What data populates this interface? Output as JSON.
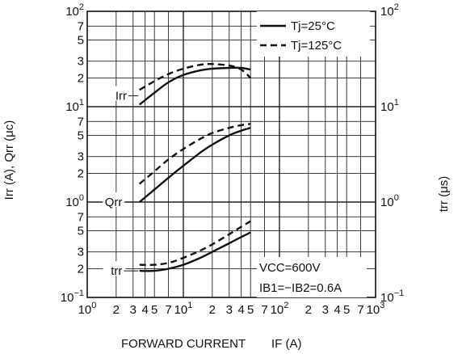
{
  "chart_data": {
    "type": "line",
    "x_scale": "log",
    "y_scale": "log",
    "xlim": [
      1,
      1000
    ],
    "ylim": [
      0.1,
      100
    ],
    "grid": true,
    "x_ticks": [
      {
        "base": "10",
        "exp": "0",
        "v": 1
      },
      {
        "label": "2",
        "v": 2
      },
      {
        "label": "3",
        "v": 3
      },
      {
        "label": "4",
        "v": 4
      },
      {
        "label": "5",
        "v": 5
      },
      {
        "label": "7",
        "v": 7
      },
      {
        "base": "10",
        "exp": "1",
        "v": 10
      },
      {
        "label": "2",
        "v": 20
      },
      {
        "label": "3",
        "v": 30
      },
      {
        "label": "4",
        "v": 40
      },
      {
        "label": "5",
        "v": 50
      },
      {
        "label": "7",
        "v": 70
      },
      {
        "base": "10",
        "exp": "2",
        "v": 100
      },
      {
        "label": "2",
        "v": 200
      },
      {
        "label": "3",
        "v": 300
      },
      {
        "label": "4",
        "v": 400
      },
      {
        "label": "5",
        "v": 500
      },
      {
        "label": "7",
        "v": 700
      },
      {
        "base": "10",
        "exp": "3",
        "v": 1000
      }
    ],
    "y_left_ticks": [
      {
        "base": "10",
        "exp": "−1",
        "v": 0.1
      },
      {
        "label": "2",
        "v": 0.2
      },
      {
        "label": "3",
        "v": 0.3
      },
      {
        "label": "5",
        "v": 0.5
      },
      {
        "label": "7",
        "v": 0.7
      },
      {
        "base": "10",
        "exp": "0",
        "v": 1
      },
      {
        "label": "2",
        "v": 2
      },
      {
        "label": "3",
        "v": 3
      },
      {
        "label": "5",
        "v": 5
      },
      {
        "label": "7",
        "v": 7
      },
      {
        "base": "10",
        "exp": "1",
        "v": 10
      },
      {
        "label": "2",
        "v": 20
      },
      {
        "label": "3",
        "v": 30
      },
      {
        "label": "5",
        "v": 50
      },
      {
        "label": "7",
        "v": 70
      },
      {
        "base": "10",
        "exp": "2",
        "v": 100
      }
    ],
    "y_right_ticks": [
      {
        "base": "10",
        "exp": "2",
        "v": 100
      },
      {
        "base": "10",
        "exp": "1",
        "v": 10
      },
      {
        "base": "10",
        "exp": "0",
        "v": 1
      },
      {
        "base": "10",
        "exp": "−1",
        "v": 0.1
      }
    ],
    "xlabel_main": "FORWARD CURRENT",
    "xlabel_sym": "IF (A)",
    "ylabel_left": "Irr (A), Qrr (μc)",
    "ylabel_right": "trr (μs)",
    "legend": [
      {
        "label": "Tj=25°C",
        "style": "solid"
      },
      {
        "label": "Tj=125°C",
        "style": "dashed"
      }
    ],
    "curve_labels": [
      {
        "text": "Irr",
        "x": 2.9,
        "y": 13
      },
      {
        "text": "Qrr",
        "x": 2.6,
        "y": 1.0
      },
      {
        "text": "trr",
        "x": 2.6,
        "y": 0.19
      }
    ],
    "annotations": [
      "VCC=600V",
      "IB1=−IB2=0.6A"
    ],
    "series": [
      {
        "curve": "Irr",
        "style": "solid",
        "x": [
          3.5,
          5,
          7,
          10,
          15,
          20,
          30,
          40,
          50
        ],
        "y": [
          10.5,
          14,
          18,
          21.5,
          24,
          25,
          25.5,
          25.5,
          24.5
        ]
      },
      {
        "curve": "Irr",
        "style": "dashed",
        "x": [
          3.5,
          5,
          7,
          10,
          15,
          20,
          30,
          40,
          50
        ],
        "y": [
          15,
          18.5,
          22,
          25,
          27.5,
          28,
          27,
          24.5,
          20
        ]
      },
      {
        "curve": "Qrr",
        "style": "solid",
        "x": [
          3.5,
          5,
          7,
          10,
          15,
          20,
          30,
          40,
          50
        ],
        "y": [
          1.0,
          1.35,
          1.8,
          2.4,
          3.3,
          4.0,
          5.0,
          5.6,
          6.0
        ]
      },
      {
        "curve": "Qrr",
        "style": "dashed",
        "x": [
          3.5,
          5,
          7,
          10,
          15,
          20,
          30,
          40,
          50
        ],
        "y": [
          1.55,
          2.1,
          2.8,
          3.6,
          4.6,
          5.3,
          6.0,
          6.4,
          6.6
        ]
      },
      {
        "curve": "trr",
        "style": "solid",
        "x": [
          3.5,
          5,
          7,
          10,
          15,
          20,
          30,
          40,
          50
        ],
        "y": [
          0.19,
          0.19,
          0.2,
          0.22,
          0.26,
          0.3,
          0.37,
          0.43,
          0.48
        ]
      },
      {
        "curve": "trr",
        "style": "dashed",
        "x": [
          3.5,
          5,
          7,
          10,
          15,
          20,
          30,
          40,
          50
        ],
        "y": [
          0.22,
          0.22,
          0.23,
          0.26,
          0.31,
          0.36,
          0.46,
          0.55,
          0.63
        ]
      }
    ]
  }
}
